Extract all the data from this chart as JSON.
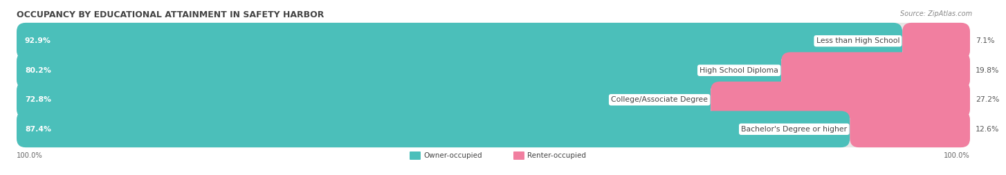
{
  "title": "OCCUPANCY BY EDUCATIONAL ATTAINMENT IN SAFETY HARBOR",
  "source": "Source: ZipAtlas.com",
  "categories": [
    "Less than High School",
    "High School Diploma",
    "College/Associate Degree",
    "Bachelor's Degree or higher"
  ],
  "owner_pct": [
    92.9,
    80.2,
    72.8,
    87.4
  ],
  "renter_pct": [
    7.1,
    19.8,
    27.2,
    12.6
  ],
  "owner_color": "#4BBFBA",
  "renter_color": "#F17FA0",
  "bg_pill_color": "#E6E6E6",
  "row_bg_colors": [
    "#EFEFEF",
    "#FAFAFA",
    "#EFEFEF",
    "#FAFAFA"
  ],
  "title_fontsize": 9.0,
  "label_fontsize": 7.8,
  "pct_label_fontsize": 7.8,
  "tick_fontsize": 7.2,
  "source_fontsize": 7.0,
  "legend_fontsize": 7.5,
  "cat_label_fontsize": 7.8
}
